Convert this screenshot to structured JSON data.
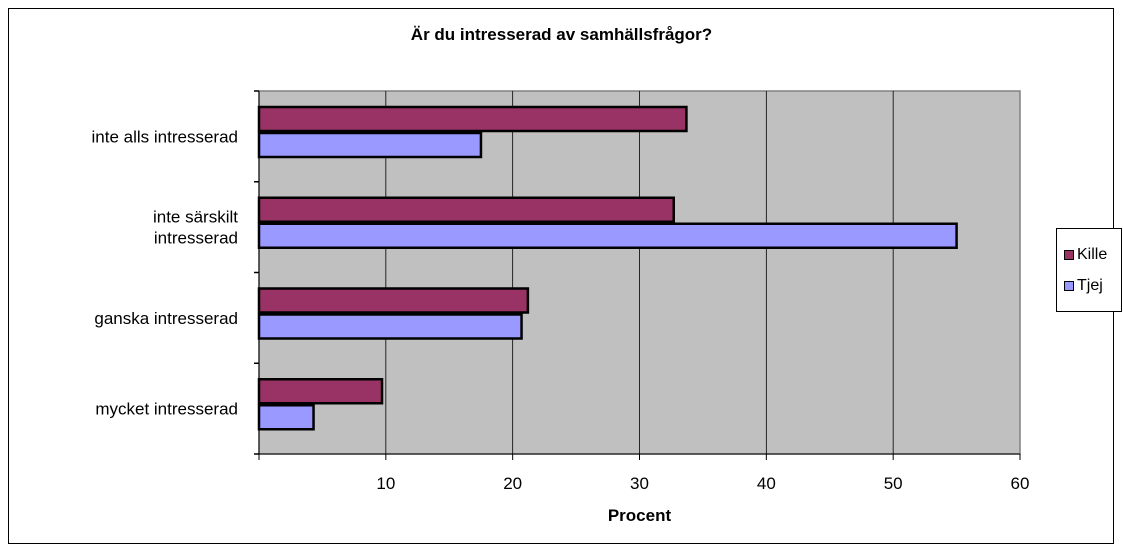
{
  "chart_data": {
    "type": "bar",
    "orientation": "horizontal",
    "title": "Är du intresserad av samhällsfrågor?",
    "xlabel": "Procent",
    "ylabel": "",
    "xlim": [
      0,
      60
    ],
    "xticks": [
      "10",
      "20",
      "30",
      "40",
      "50",
      "60"
    ],
    "categories": [
      [
        "inte alls intresserad"
      ],
      [
        "inte särskilt",
        "intresserad"
      ],
      [
        "ganska intresserad"
      ],
      [
        "mycket intresserad"
      ]
    ],
    "series": [
      {
        "name": "Kille",
        "color": "#993366",
        "values": [
          33.7,
          32.7,
          21.2,
          9.7
        ]
      },
      {
        "name": "Tjej",
        "color": "#9999FF",
        "values": [
          17.5,
          55.0,
          20.7,
          4.3
        ]
      }
    ],
    "plot_background": "#C0C0C0",
    "grid": true,
    "legend_position": "right"
  }
}
